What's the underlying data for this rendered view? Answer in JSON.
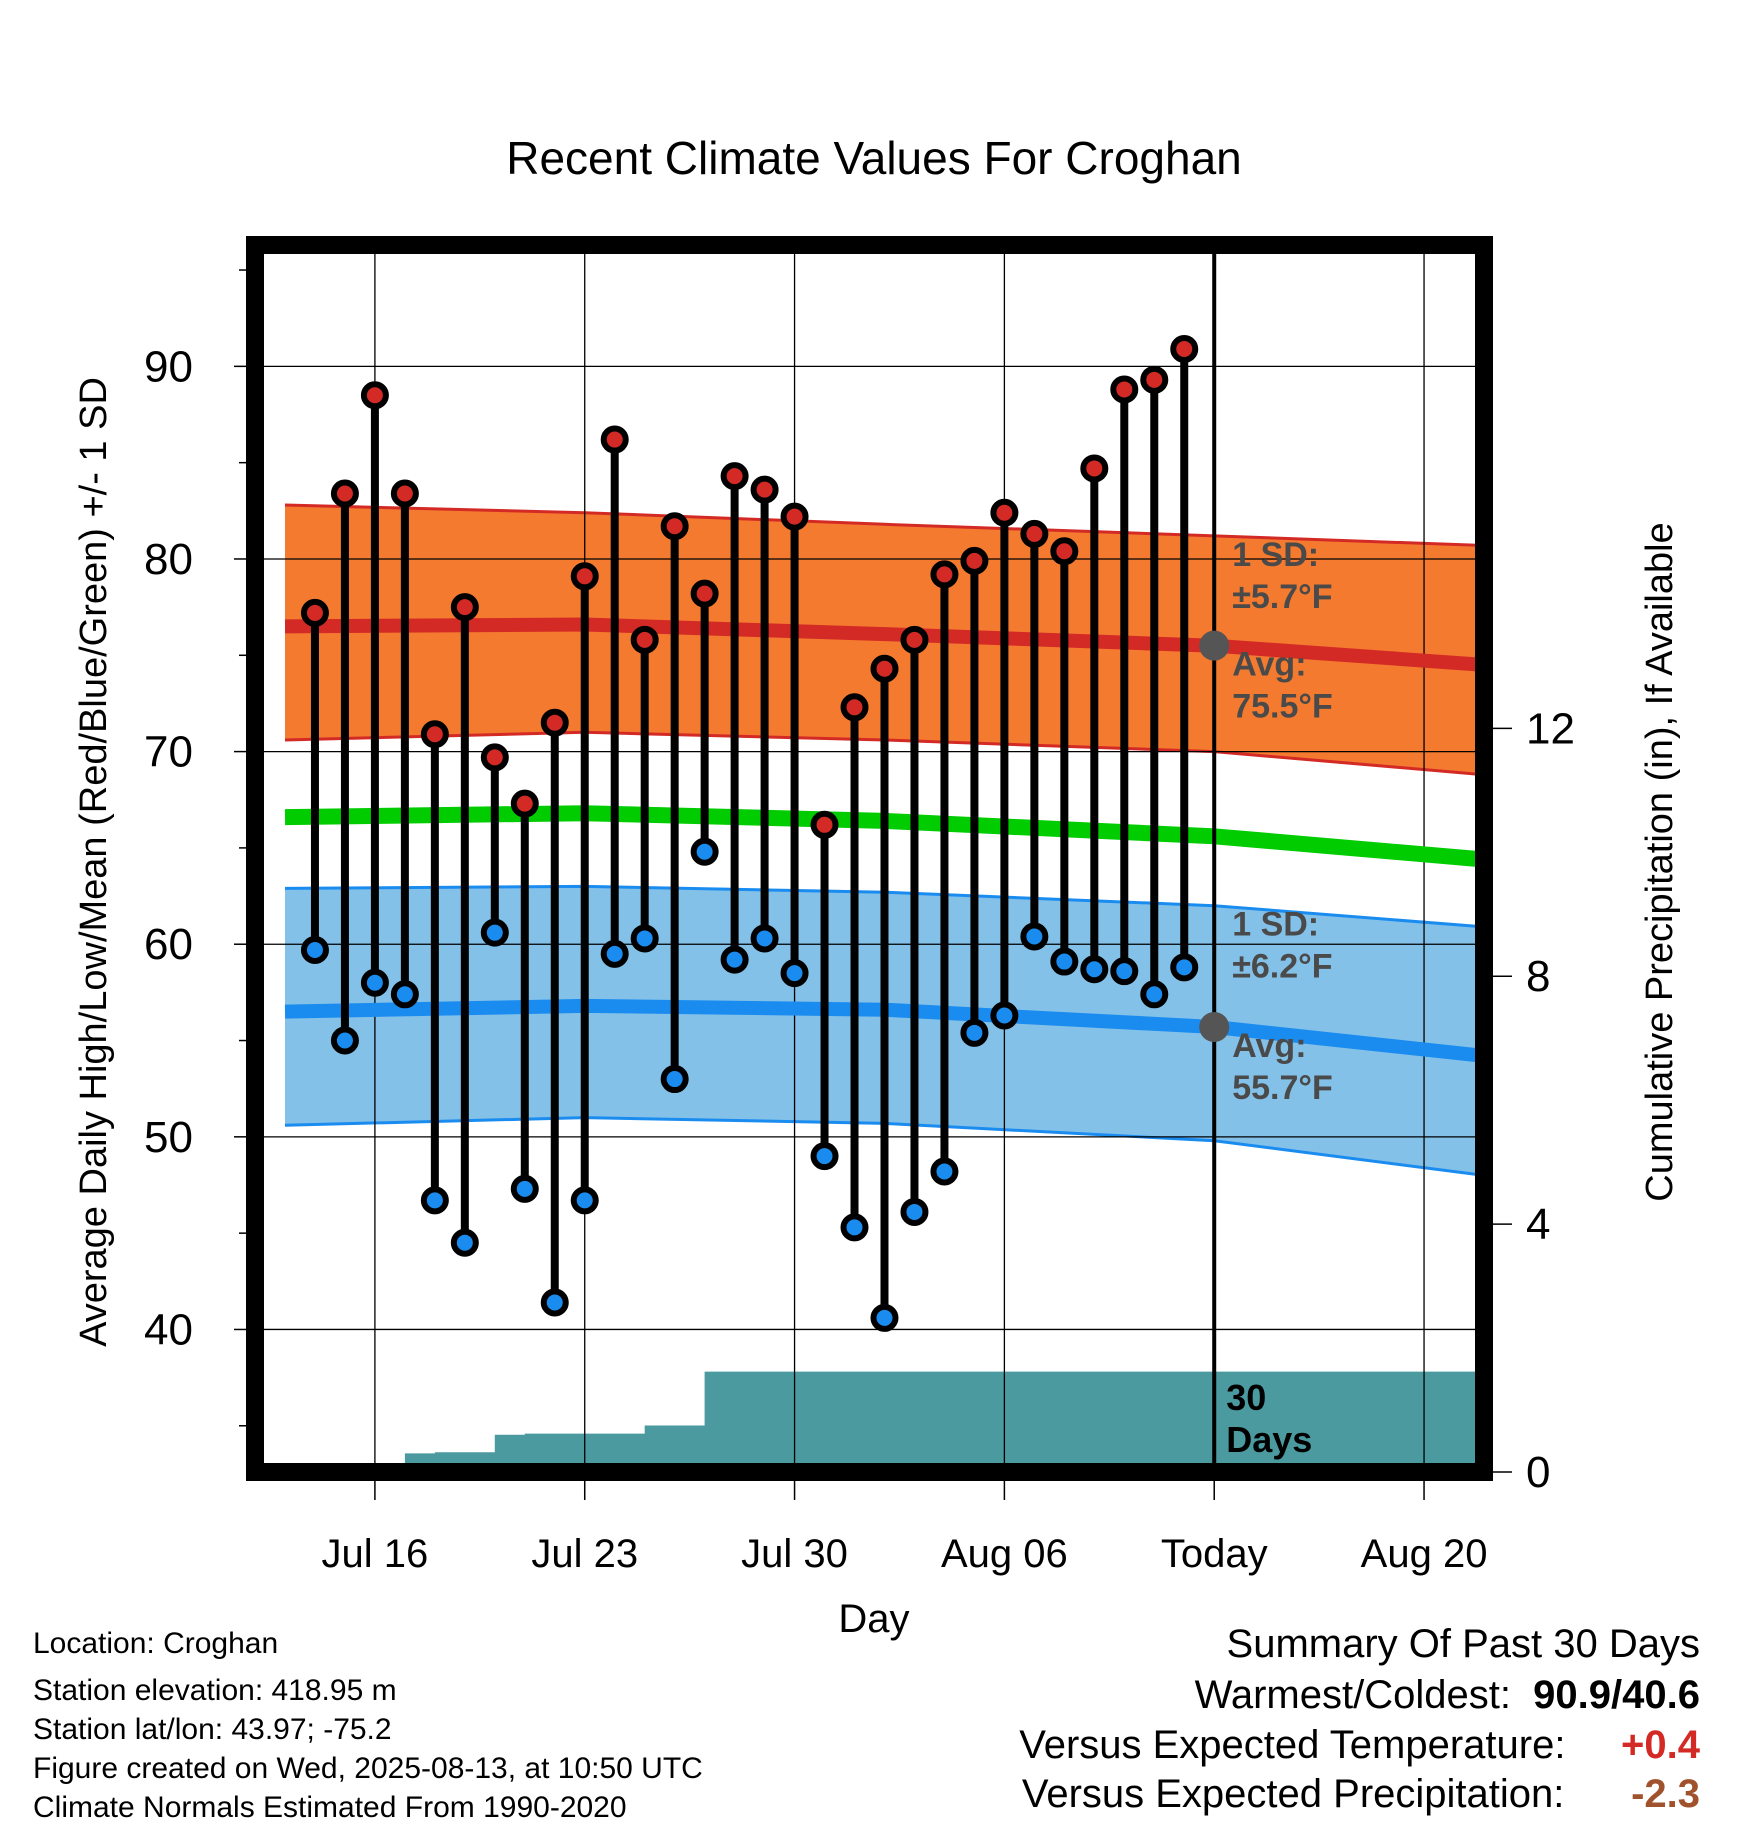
{
  "chart_data": {
    "type": "line",
    "title": "Recent Climate Values For Croghan",
    "xlabel": "Day",
    "ylabel": "Average Daily High/Low/Mean (Red/Blue/Green) +/- 1 SD",
    "y2label": "Cumulative Precipitation (in), If Available",
    "ylim": [
      32.6,
      96.3
    ],
    "y2lim": [
      0,
      19.8
    ],
    "yticks": [
      40,
      50,
      60,
      70,
      80,
      90
    ],
    "y2ticks": [
      0,
      4,
      8,
      12
    ],
    "xlim": [
      "2025-07-12",
      "2025-08-22"
    ],
    "xticks": [
      {
        "date": "2025-07-16",
        "label": "Jul 16"
      },
      {
        "date": "2025-07-23",
        "label": "Jul 23"
      },
      {
        "date": "2025-07-30",
        "label": "Jul 30"
      },
      {
        "date": "2025-08-06",
        "label": "Aug 06"
      },
      {
        "date": "2025-08-13",
        "label": "Today"
      },
      {
        "date": "2025-08-20",
        "label": "Aug 20"
      }
    ],
    "grid": true,
    "normals": {
      "dates": [
        "2025-07-13",
        "2025-07-23",
        "2025-08-02",
        "2025-08-13",
        "2025-08-22"
      ],
      "high_avg": [
        76.5,
        76.6,
        76.1,
        75.5,
        74.5
      ],
      "high_upper": [
        82.8,
        82.4,
        81.8,
        81.2,
        80.7
      ],
      "high_lower": [
        70.6,
        71.0,
        70.6,
        70.0,
        68.8
      ],
      "mean_avg": [
        66.6,
        66.8,
        66.4,
        65.6,
        64.4
      ],
      "low_avg": [
        56.5,
        56.8,
        56.6,
        55.7,
        54.2
      ],
      "low_upper": [
        62.9,
        63.0,
        62.7,
        62.0,
        60.9
      ],
      "low_lower": [
        50.6,
        51.0,
        50.7,
        49.8,
        48.0
      ]
    },
    "high_band": {
      "sd_label": "1 SD:",
      "sd_value": "±5.7°F",
      "avg_label": "Avg:",
      "avg_value": "75.5°F",
      "avg": 75.5
    },
    "low_band": {
      "sd_label": "1 SD:",
      "sd_value": "±6.2°F",
      "avg_label": "Avg:",
      "avg_value": "55.7°F",
      "avg": 55.7
    },
    "today": "2025-08-13",
    "window_label": "30 Days",
    "observations": {
      "dates": [
        "2025-07-14",
        "2025-07-15",
        "2025-07-16",
        "2025-07-17",
        "2025-07-18",
        "2025-07-19",
        "2025-07-20",
        "2025-07-21",
        "2025-07-22",
        "2025-07-23",
        "2025-07-24",
        "2025-07-25",
        "2025-07-26",
        "2025-07-27",
        "2025-07-28",
        "2025-07-29",
        "2025-07-30",
        "2025-07-31",
        "2025-08-01",
        "2025-08-02",
        "2025-08-03",
        "2025-08-04",
        "2025-08-05",
        "2025-08-06",
        "2025-08-07",
        "2025-08-08",
        "2025-08-09",
        "2025-08-10",
        "2025-08-11",
        "2025-08-12"
      ],
      "high": [
        77.2,
        83.4,
        88.5,
        83.4,
        70.9,
        77.5,
        69.7,
        67.3,
        71.5,
        79.1,
        86.2,
        75.8,
        81.7,
        78.2,
        84.3,
        83.6,
        82.2,
        66.2,
        72.3,
        74.3,
        75.8,
        79.2,
        79.9,
        82.4,
        81.3,
        80.4,
        84.7,
        88.8,
        89.3,
        90.9
      ],
      "low": [
        59.7,
        55.0,
        58.0,
        57.4,
        46.7,
        44.5,
        60.6,
        47.3,
        41.4,
        46.7,
        59.5,
        60.3,
        53.0,
        64.8,
        59.2,
        60.3,
        58.5,
        49.0,
        45.3,
        40.6,
        46.1,
        48.2,
        55.4,
        56.3,
        60.4,
        59.1,
        58.7,
        58.6,
        57.4,
        58.8
      ]
    },
    "precipitation": {
      "dates": [
        "2025-07-16",
        "2025-07-17",
        "2025-07-18",
        "2025-07-19",
        "2025-07-20",
        "2025-07-21",
        "2025-07-22",
        "2025-07-23",
        "2025-07-24",
        "2025-07-25",
        "2025-07-26",
        "2025-07-27",
        "2025-08-22"
      ],
      "cumulative": [
        0.0,
        0.3,
        0.32,
        0.32,
        0.6,
        0.62,
        0.62,
        0.62,
        0.62,
        0.75,
        0.75,
        1.62,
        1.62
      ]
    },
    "colors": {
      "high_band": "#f47a30",
      "high_line": "#d42a25",
      "mean_line": "#00cc00",
      "low_band": "#84c1e8",
      "low_line": "#1a8cf0",
      "precip": "#4a9aa0",
      "band_text": "#4a4a4a",
      "high_marker": "#d42a25",
      "low_marker": "#1a8cf0"
    }
  },
  "station": {
    "location": "Location: Croghan",
    "elevation": "Station elevation: 418.95 m",
    "latlon": "Station lat/lon: 43.97; -75.2",
    "created": "Figure created on Wed, 2025-08-13, at 10:50 UTC",
    "normals": "Climate Normals Estimated From 1990-2020"
  },
  "summary": {
    "heading": "Summary Of Past 30 Days",
    "warm_cold_label": "Warmest/Coldest:",
    "warm_cold_value": "90.9/40.6",
    "temp_label": "Versus Expected Temperature:",
    "temp_value": "+0.4",
    "temp_color": "#d42a25",
    "precip_label": "Versus Expected Precipitation:",
    "precip_value": "-2.3",
    "precip_color": "#a0522d"
  }
}
